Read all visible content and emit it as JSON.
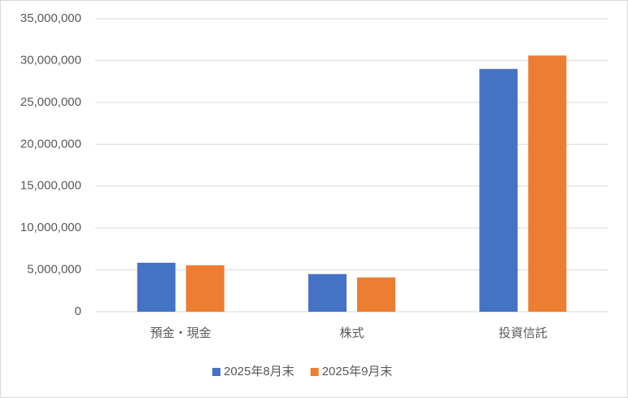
{
  "chart_data": {
    "type": "bar",
    "categories": [
      "預金・現金",
      "株式",
      "投資信託"
    ],
    "series": [
      {
        "name": "2025年8月末",
        "color": "#4472c4",
        "values": [
          5850000,
          4500000,
          29000000
        ]
      },
      {
        "name": "2025年9月末",
        "color": "#ed7d31",
        "values": [
          5550000,
          4100000,
          30600000
        ]
      }
    ],
    "ylim": [
      0,
      35000000
    ],
    "yticks": [
      0,
      {
        "value": 5000000,
        "label": "5,000,000"
      },
      {
        "value": 10000000,
        "label": "10,000,000"
      },
      {
        "value": 15000000,
        "label": "15,000,000"
      },
      {
        "value": 20000000,
        "label": "20,000,000"
      },
      {
        "value": 25000000,
        "label": "25,000,000"
      },
      {
        "value": 30000000,
        "label": "30,000,000"
      },
      {
        "value": 35000000,
        "label": "35,000,000"
      }
    ],
    "grid": true,
    "legend": "bottom"
  }
}
